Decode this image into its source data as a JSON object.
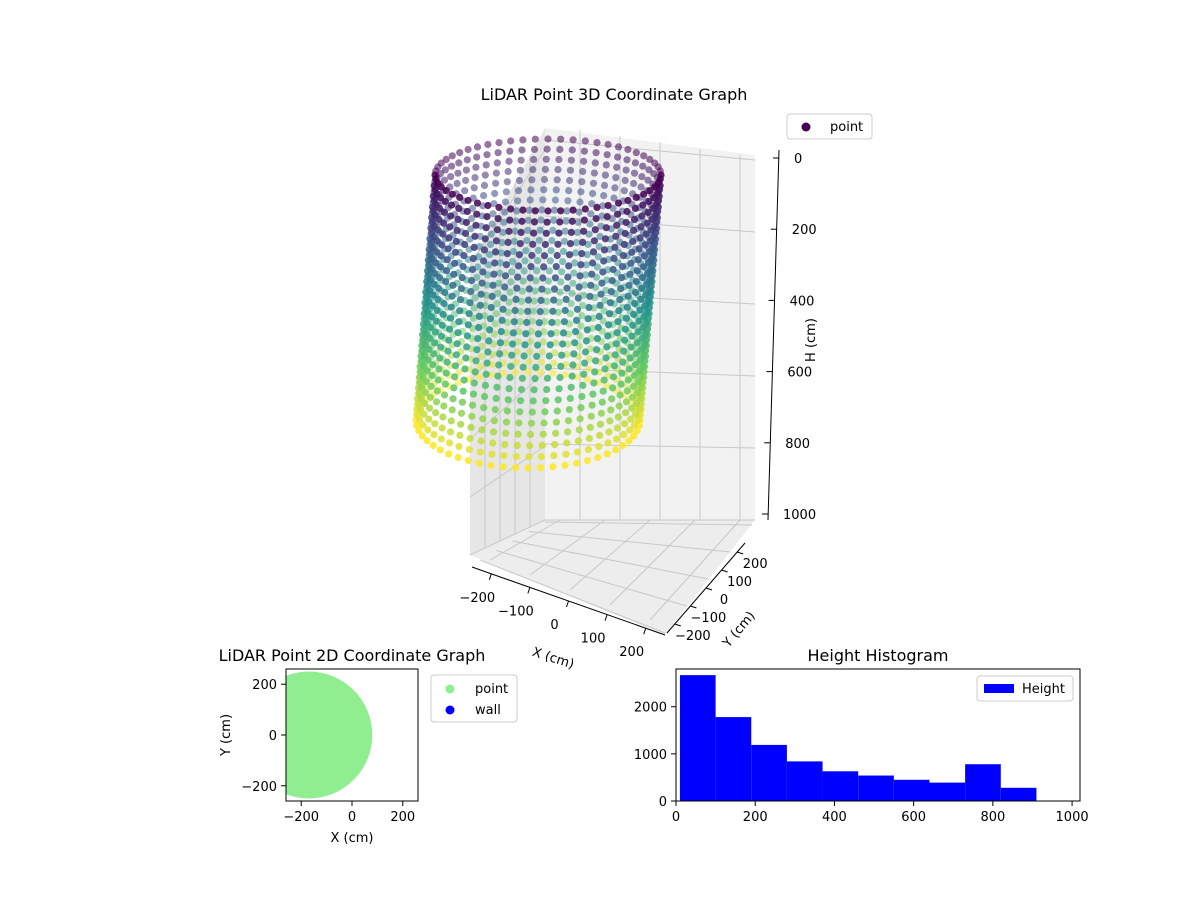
{
  "chart_data": [
    {
      "type": "scatter3d",
      "title": "LiDAR Point 3D Coordinate Graph",
      "xlabel": "X (cm)",
      "ylabel": "Y (cm)",
      "zlabel": "H (cm)",
      "x_ticks": [
        -200,
        -100,
        0,
        100,
        200
      ],
      "y_ticks": [
        -200,
        -100,
        0,
        100,
        200
      ],
      "z_ticks": [
        0,
        200,
        400,
        600,
        800,
        1000
      ],
      "x_tick_labels": [
        "−200",
        "−100",
        "0",
        "100",
        "200"
      ],
      "y_tick_labels": [
        "−200",
        "−100",
        "0",
        "100",
        "200"
      ],
      "z_tick_labels": [
        "0",
        "200",
        "400",
        "600",
        "800",
        "1000"
      ],
      "xlim": [
        -250,
        250
      ],
      "ylim": [
        -250,
        250
      ],
      "zlim": [
        0,
        1000
      ],
      "z_inverted": true,
      "grid": true,
      "legend": [
        {
          "label": "point",
          "color": "#440154"
        }
      ],
      "legend_position": "upper-right-outside",
      "colormap": "viridis",
      "color_by": "height"
    },
    {
      "type": "scatter",
      "title": "LiDAR Point 2D Coordinate Graph",
      "xlabel": "X (cm)",
      "ylabel": "Y (cm)",
      "x_ticks": [
        -200,
        0,
        200
      ],
      "y_ticks": [
        200,
        0,
        -200
      ],
      "x_tick_labels": [
        "−200",
        "0",
        "200"
      ],
      "y_tick_labels": [
        "200",
        "0",
        "−200"
      ],
      "xlim": [
        -260,
        260
      ],
      "ylim": [
        -260,
        260
      ],
      "point_region": {
        "shape": "disk",
        "center_x": -170,
        "center_y": 0,
        "radius": 250
      },
      "legend": [
        {
          "label": "point",
          "color": "#90ee90"
        },
        {
          "label": "wall",
          "color": "#0000ff"
        }
      ],
      "legend_position": "right-outside"
    },
    {
      "type": "bar",
      "title": "Height Histogram",
      "legend": [
        {
          "label": "Height",
          "color": "#0000ff"
        }
      ],
      "legend_position": "top-right",
      "bin_edges": [
        10,
        100,
        190,
        280,
        370,
        460,
        550,
        640,
        730,
        820,
        910
      ],
      "values": [
        2670,
        1780,
        1190,
        840,
        630,
        540,
        450,
        390,
        780,
        280
      ],
      "xlim": [
        0,
        1020
      ],
      "ylim": [
        0,
        2800
      ],
      "x_ticks": [
        0,
        200,
        400,
        600,
        800,
        1000
      ],
      "y_ticks": [
        0,
        1000,
        2000
      ],
      "x_tick_labels": [
        "0",
        "200",
        "400",
        "600",
        "800",
        "1000"
      ],
      "y_tick_labels": [
        "0",
        "1000",
        "2000"
      ],
      "bar_color": "#0000ff"
    }
  ]
}
